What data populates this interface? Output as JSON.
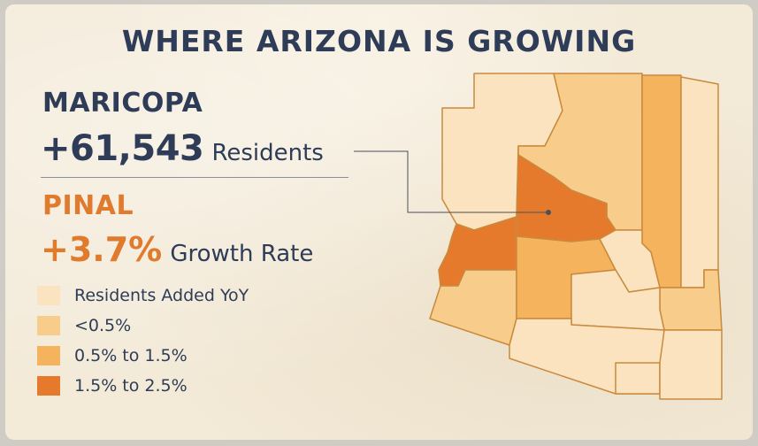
{
  "title": "WHERE ARIZONA IS GROWING",
  "highlight_1": {
    "county": "MARICOPA",
    "value": "+61,543",
    "unit": "Residents"
  },
  "highlight_2": {
    "county": "PINAL",
    "value": "+3.7%",
    "unit": "Growth Rate"
  },
  "legend": [
    {
      "label": "Residents Added YoY",
      "color": "#fbe3bf"
    },
    {
      "label": "<0.5%",
      "color": "#f8cc8a"
    },
    {
      "label": "0.5% to 1.5%",
      "color": "#f4b35c"
    },
    {
      "label": "1.5% to 2.5%",
      "color": "#e57a2c"
    }
  ],
  "colors": {
    "navy": "#2e3c57",
    "accent_orange": "#e07a2c",
    "border": "#c98a3d"
  }
}
